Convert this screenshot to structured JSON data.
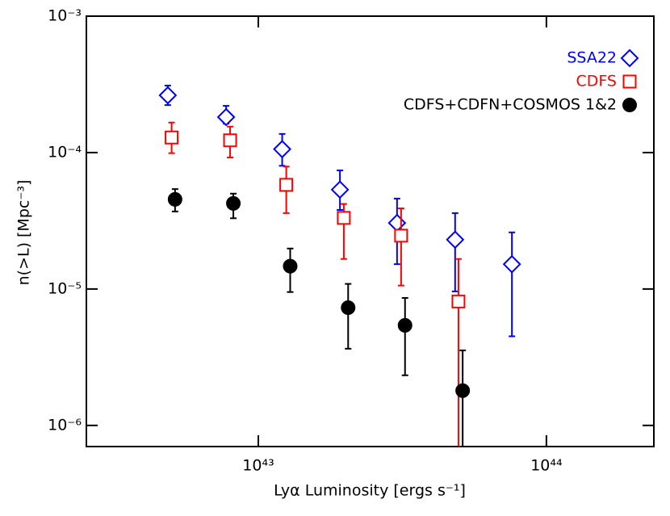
{
  "chart_data": {
    "type": "scatter",
    "xlabel": "Lyα Luminosity [ergs s⁻¹]",
    "ylabel": "n(>L) [Mpc⁻³]",
    "xscale": "log",
    "yscale": "log",
    "xlim": [
      2.53e+42,
      2.36e+44
    ],
    "ylim": [
      7e-07,
      0.001
    ],
    "xticks": [
      {
        "value": 1e+43,
        "label": "10⁴³"
      },
      {
        "value": 1e+44,
        "label": "10⁴⁴"
      }
    ],
    "yticks": [
      {
        "value": 1e-06,
        "label": "10⁻⁶"
      },
      {
        "value": 1e-05,
        "label": "10⁻⁵"
      },
      {
        "value": 0.0001,
        "label": "10⁻⁴"
      },
      {
        "value": 0.001,
        "label": "10⁻³"
      }
    ],
    "legend": "upper right",
    "series": [
      {
        "name": "SSA22",
        "color": "#0000ff",
        "marker": "diamond",
        "x": [
          4.85e+42,
          7.73e+42,
          1.21e+43,
          1.92e+43,
          3.03e+43,
          4.82e+43,
          7.59e+43
        ],
        "values": [
          0.000263,
          0.000182,
          0.000106,
          5.35e-05,
          3.05e-05,
          2.3e-05,
          1.52e-05
        ],
        "upper": [
          0.00031,
          0.00022,
          0.000137,
          7.4e-05,
          4.6e-05,
          3.6e-05,
          2.6e-05
        ],
        "lower": [
          0.000223,
          0.000163,
          8e-05,
          3.8e-05,
          1.52e-05,
          9.6e-06,
          4.5e-06
        ]
      },
      {
        "name": "CDFS",
        "color": "#ff0000",
        "marker": "square",
        "x": [
          5e+42,
          7.98e+42,
          1.25e+43,
          1.98e+43,
          3.13e+43,
          4.95e+43
        ],
        "values": [
          0.000129,
          0.000123,
          5.8e-05,
          3.32e-05,
          2.46e-05,
          8.1e-06
        ],
        "upper": [
          0.000166,
          0.000155,
          7.9e-05,
          4.2e-05,
          3.9e-05,
          1.66e-05
        ],
        "lower": [
          9.9e-05,
          9.2e-05,
          3.6e-05,
          1.66e-05,
          1.06e-05,
          5e-07
        ]
      },
      {
        "name": "CDFS+CDFN+COSMOS 1&2",
        "color": "#000000",
        "marker": "circle",
        "x": [
          5.14e+42,
          8.19e+42,
          1.29e+43,
          2.05e+43,
          3.23e+43,
          5.12e+43
        ],
        "values": [
          4.54e-05,
          4.24e-05,
          1.47e-05,
          7.3e-06,
          5.42e-06,
          1.8e-06
        ],
        "upper": [
          5.4e-05,
          5e-05,
          1.98e-05,
          1.09e-05,
          8.6e-06,
          3.55e-06
        ],
        "lower": [
          3.7e-05,
          3.3e-05,
          9.5e-06,
          3.65e-06,
          2.33e-06,
          5e-07
        ]
      }
    ]
  }
}
